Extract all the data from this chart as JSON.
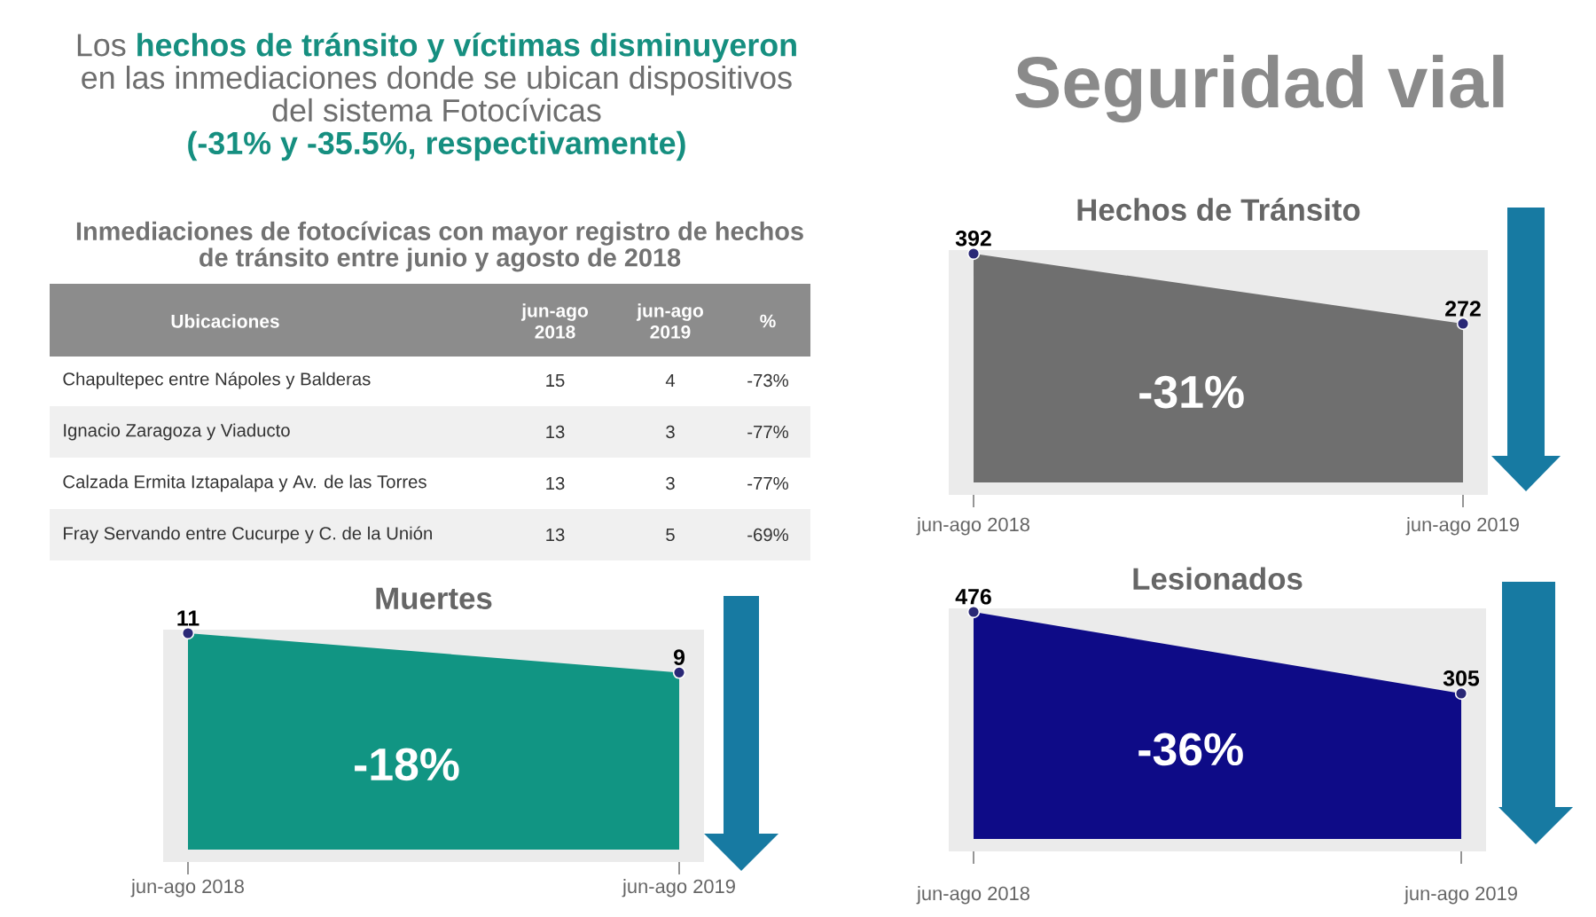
{
  "chart_data": [
    {
      "type": "other",
      "title": "Seguridad vial",
      "subtitle": "Los **hechos de tránsito y víctimas disminuyeron** en las inmediaciones donde se ubican dispositivos del sistema Fotocívicas **(-31% y -35.5%, respectivamente)**"
    },
    {
      "type": "other",
      "title": "Inmediaciones de fotocívicas con mayor registro de hechos de tránsito entre junio y agosto de 2018",
      "ylabel": "Ubicaciones",
      "categories": [
        "Chapultepec entre Nápoles y Balderas",
        "Ignacio Zaragoza y Viaducto",
        "Calzada Ermita Iztapalapa y Av. de las Torres",
        "Fray Servando entre Cucurpe y C. de la Unión"
      ],
      "series": [
        {
          "name": "jun-ago 2018",
          "values": [
            15,
            13,
            13,
            13
          ]
        },
        {
          "name": "jun-ago 2019",
          "values": [
            4,
            3,
            3,
            5
          ]
        },
        {
          "name": "%",
          "values": [
            -73,
            -77,
            -77,
            -69
          ],
          "value_labels": [
            "-73%",
            "-77%",
            "-77%",
            "-69%"
          ]
        }
      ],
      "data_labels": true
    },
    {
      "type": "area",
      "title": "Hechos de Tránsito",
      "categories": [
        "jun-ago 2018",
        "jun-ago 2019"
      ],
      "values": [
        392,
        272
      ],
      "color": "#6f6f6f",
      "marker": "circle",
      "data_labels": true,
      "annotations": [
        "-31%"
      ]
    },
    {
      "type": "area",
      "title": "Muertes",
      "categories": [
        "jun-ago 2018",
        "jun-ago 2019"
      ],
      "values": [
        11,
        9
      ],
      "color": "#119583",
      "marker": "circle",
      "data_labels": true,
      "annotations": [
        "-18%"
      ]
    },
    {
      "type": "area",
      "title": "Lesionados",
      "categories": [
        "jun-ago 2018",
        "jun-ago 2019"
      ],
      "values": [
        476,
        305
      ],
      "color": "#0e0b87",
      "marker": "circle",
      "data_labels": true,
      "annotations": [
        "-36%"
      ]
    }
  ]
}
